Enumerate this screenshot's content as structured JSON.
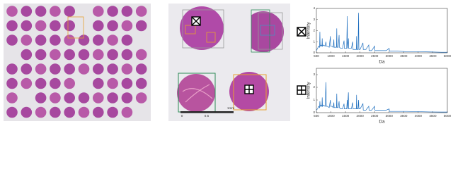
{
  "micrograph": {
    "scale_labels": [
      "0",
      "0.5",
      "1mm"
    ]
  },
  "chart_data": [
    {
      "type": "line",
      "xlabel": "Da",
      "ylabel": "Intensity",
      "xlim": [
        500,
        5000
      ],
      "ylim": [
        0,
        4
      ],
      "xticks": [
        500,
        1000,
        1500,
        2000,
        2500,
        3000,
        3500,
        4000,
        4500,
        5000
      ],
      "yticks": [
        0,
        1,
        2,
        3,
        4
      ],
      "series": [
        {
          "color": "#1f6fbf",
          "x": [
            500,
            540,
            580,
            610,
            620,
            630,
            660,
            690,
            700,
            710,
            750,
            800,
            830,
            840,
            880,
            940,
            980,
            990,
            1040,
            1080,
            1100,
            1110,
            1160,
            1190,
            1200,
            1210,
            1250,
            1280,
            1290,
            1340,
            1400,
            1450,
            1460,
            1500,
            1540,
            1560,
            1570,
            1600,
            1610,
            1650,
            1700,
            1750,
            1760,
            1820,
            1870,
            1880,
            1890,
            1930,
            1950,
            1960,
            2000,
            2100,
            2110,
            2200,
            2300,
            2310,
            2400,
            2500,
            2510,
            2700,
            2900,
            3000,
            3010,
            3300,
            3600,
            4000,
            4400,
            4800,
            5000
          ],
          "values": [
            0.2,
            0.4,
            0.6,
            0.5,
            1.9,
            0.6,
            0.7,
            0.6,
            1.3,
            0.6,
            0.7,
            0.6,
            1.0,
            0.6,
            0.6,
            0.5,
            1.5,
            0.6,
            0.6,
            0.5,
            1.2,
            0.5,
            0.5,
            0.5,
            2.2,
            0.5,
            0.5,
            1.6,
            0.5,
            0.4,
            0.4,
            1.1,
            0.4,
            0.4,
            0.4,
            3.3,
            0.4,
            1.3,
            0.4,
            0.4,
            0.4,
            1.0,
            0.3,
            0.3,
            0.3,
            1.5,
            0.3,
            0.3,
            3.6,
            0.3,
            0.3,
            0.9,
            0.3,
            0.3,
            0.7,
            0.2,
            0.2,
            0.6,
            0.2,
            0.2,
            0.2,
            0.4,
            0.15,
            0.15,
            0.1,
            0.1,
            0.08,
            0.05,
            0.05
          ]
        }
      ]
    },
    {
      "type": "line",
      "xlabel": "Da",
      "ylabel": "Intensity",
      "xlim": [
        500,
        5000
      ],
      "ylim": [
        0,
        3.5
      ],
      "xticks": [
        500,
        1000,
        1500,
        2000,
        2500,
        3000,
        3500,
        4000,
        4500,
        5000
      ],
      "yticks": [
        0,
        1,
        2,
        3
      ],
      "series": [
        {
          "color": "#1f6fbf",
          "x": [
            500,
            540,
            580,
            610,
            620,
            630,
            660,
            690,
            700,
            710,
            750,
            800,
            830,
            840,
            880,
            940,
            980,
            990,
            1040,
            1080,
            1100,
            1110,
            1160,
            1190,
            1200,
            1210,
            1250,
            1280,
            1290,
            1340,
            1400,
            1450,
            1460,
            1500,
            1540,
            1560,
            1570,
            1600,
            1610,
            1650,
            1700,
            1750,
            1760,
            1820,
            1870,
            1880,
            1890,
            1930,
            1950,
            1960,
            2000,
            2100,
            2110,
            2200,
            2300,
            2310,
            2400,
            2500,
            2510,
            2700,
            2900,
            3000,
            3010,
            3300,
            3600,
            4000,
            4400,
            4800,
            5000
          ],
          "values": [
            0.2,
            0.3,
            0.5,
            0.4,
            0.9,
            0.5,
            0.6,
            0.5,
            1.2,
            0.5,
            0.6,
            0.5,
            2.4,
            0.5,
            0.5,
            0.4,
            1.0,
            0.5,
            0.5,
            0.4,
            0.8,
            0.4,
            0.4,
            0.4,
            1.5,
            0.4,
            0.4,
            0.9,
            0.4,
            0.3,
            0.3,
            0.7,
            0.3,
            0.3,
            0.3,
            1.0,
            0.3,
            1.6,
            0.3,
            0.3,
            0.3,
            0.8,
            0.3,
            0.3,
            0.3,
            1.4,
            0.3,
            0.3,
            1.0,
            0.3,
            0.3,
            0.7,
            0.2,
            0.2,
            0.5,
            0.2,
            0.2,
            0.5,
            0.2,
            0.2,
            0.2,
            0.3,
            0.1,
            0.1,
            0.1,
            0.08,
            0.06,
            0.05,
            0.05
          ]
        }
      ]
    }
  ]
}
